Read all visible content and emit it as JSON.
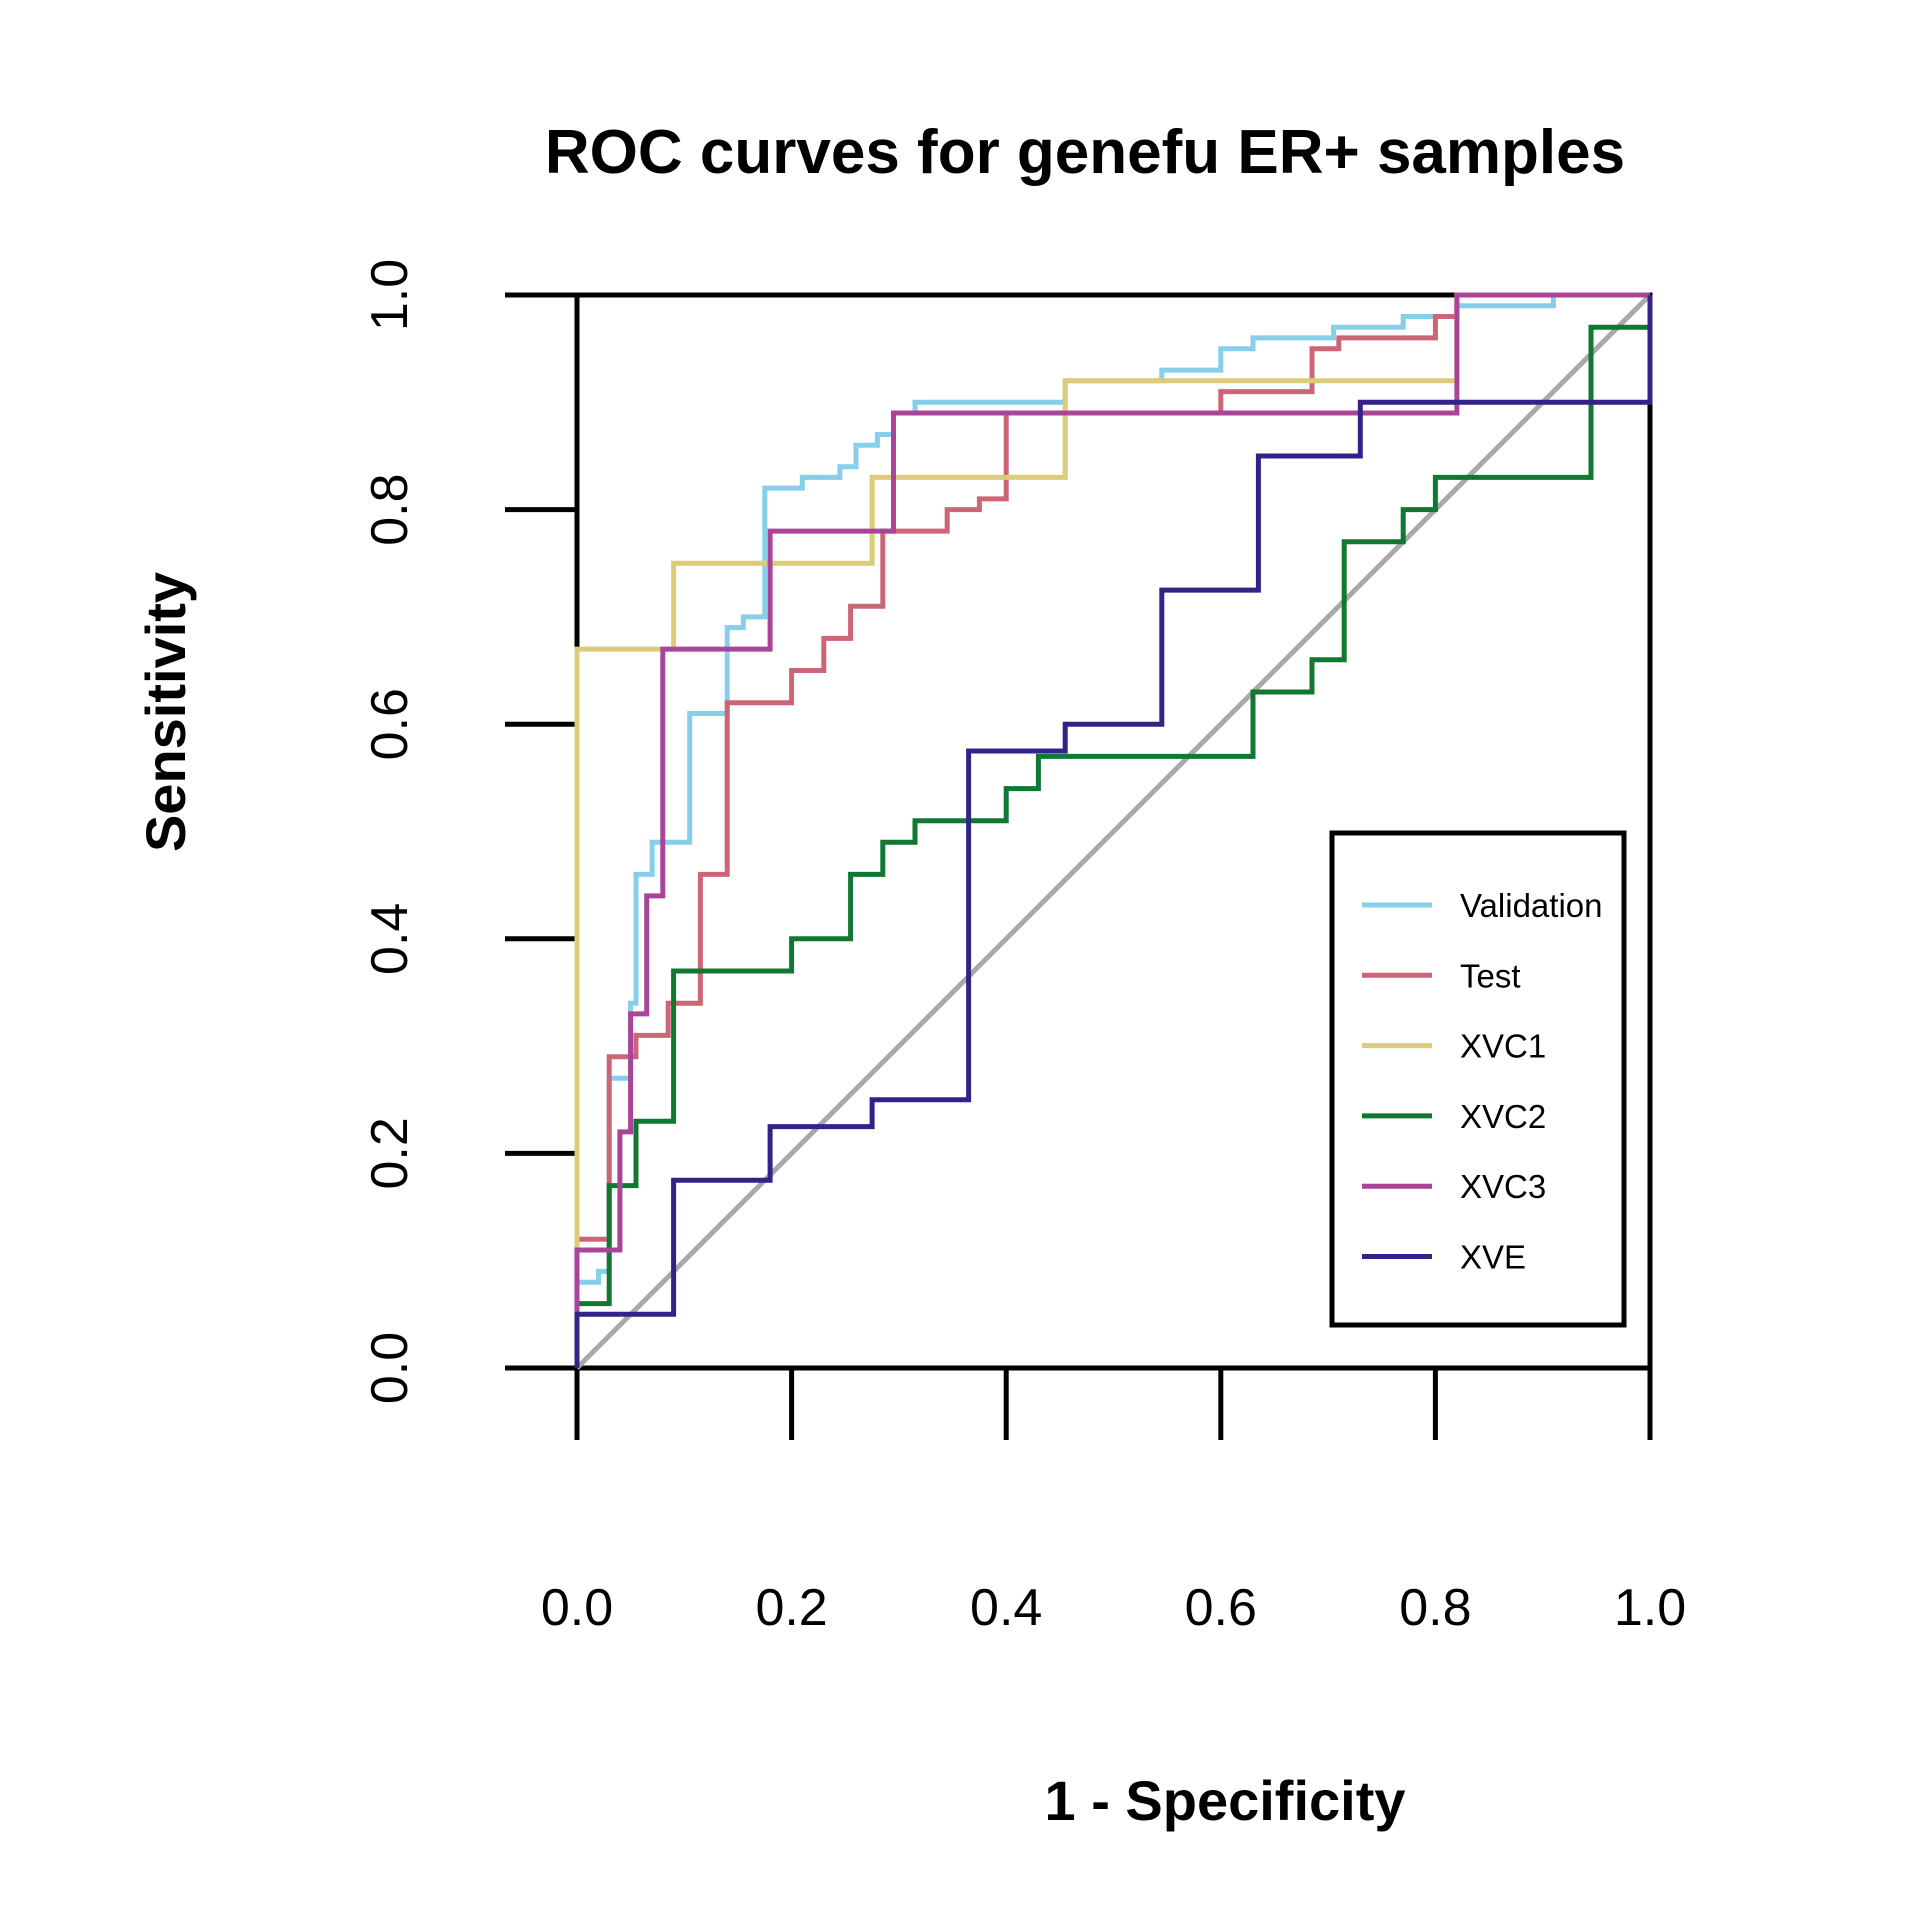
{
  "chart_data": {
    "type": "line",
    "title": "ROC curves for genefu ER+ samples",
    "xlabel": "1 - Specificity",
    "ylabel": "Sensitivity",
    "xlim": [
      0,
      1
    ],
    "ylim": [
      0,
      1
    ],
    "xticks": [
      "0.0",
      "0.2",
      "0.4",
      "0.6",
      "0.8",
      "1.0"
    ],
    "yticks": [
      "0.0",
      "0.2",
      "0.4",
      "0.6",
      "0.8",
      "1.0"
    ],
    "grid": false,
    "legend_position": "bottom-right",
    "reference_line": {
      "from": [
        0,
        0
      ],
      "to": [
        1,
        1
      ],
      "color": "#A9A9A9"
    },
    "series": [
      {
        "name": "Validation",
        "color": "#87CEEB",
        "points": [
          [
            0,
            0
          ],
          [
            0,
            0.08
          ],
          [
            0.02,
            0.08
          ],
          [
            0.02,
            0.09
          ],
          [
            0.03,
            0.09
          ],
          [
            0.03,
            0.27
          ],
          [
            0.05,
            0.27
          ],
          [
            0.05,
            0.34
          ],
          [
            0.055,
            0.34
          ],
          [
            0.055,
            0.46
          ],
          [
            0.07,
            0.46
          ],
          [
            0.07,
            0.49
          ],
          [
            0.105,
            0.49
          ],
          [
            0.105,
            0.61
          ],
          [
            0.14,
            0.61
          ],
          [
            0.14,
            0.69
          ],
          [
            0.155,
            0.69
          ],
          [
            0.155,
            0.7
          ],
          [
            0.175,
            0.7
          ],
          [
            0.175,
            0.82
          ],
          [
            0.21,
            0.82
          ],
          [
            0.21,
            0.83
          ],
          [
            0.245,
            0.83
          ],
          [
            0.245,
            0.84
          ],
          [
            0.26,
            0.84
          ],
          [
            0.26,
            0.86
          ],
          [
            0.28,
            0.86
          ],
          [
            0.28,
            0.87
          ],
          [
            0.295,
            0.87
          ],
          [
            0.295,
            0.89
          ],
          [
            0.315,
            0.89
          ],
          [
            0.315,
            0.9
          ],
          [
            0.455,
            0.9
          ],
          [
            0.455,
            0.92
          ],
          [
            0.545,
            0.92
          ],
          [
            0.545,
            0.93
          ],
          [
            0.6,
            0.93
          ],
          [
            0.6,
            0.95
          ],
          [
            0.63,
            0.95
          ],
          [
            0.63,
            0.96
          ],
          [
            0.705,
            0.96
          ],
          [
            0.705,
            0.97
          ],
          [
            0.77,
            0.97
          ],
          [
            0.77,
            0.98
          ],
          [
            0.82,
            0.98
          ],
          [
            0.82,
            0.99
          ],
          [
            0.91,
            0.99
          ],
          [
            0.91,
            1.0
          ],
          [
            1.0,
            1.0
          ]
        ]
      },
      {
        "name": "Test",
        "color": "#CC6677",
        "points": [
          [
            0,
            0
          ],
          [
            0,
            0.12
          ],
          [
            0.03,
            0.12
          ],
          [
            0.03,
            0.29
          ],
          [
            0.055,
            0.29
          ],
          [
            0.055,
            0.31
          ],
          [
            0.085,
            0.31
          ],
          [
            0.085,
            0.34
          ],
          [
            0.115,
            0.34
          ],
          [
            0.115,
            0.46
          ],
          [
            0.14,
            0.46
          ],
          [
            0.14,
            0.62
          ],
          [
            0.2,
            0.62
          ],
          [
            0.2,
            0.65
          ],
          [
            0.23,
            0.65
          ],
          [
            0.23,
            0.68
          ],
          [
            0.255,
            0.68
          ],
          [
            0.255,
            0.71
          ],
          [
            0.285,
            0.71
          ],
          [
            0.285,
            0.78
          ],
          [
            0.345,
            0.78
          ],
          [
            0.345,
            0.8
          ],
          [
            0.375,
            0.8
          ],
          [
            0.375,
            0.81
          ],
          [
            0.4,
            0.81
          ],
          [
            0.4,
            0.89
          ],
          [
            0.6,
            0.89
          ],
          [
            0.6,
            0.91
          ],
          [
            0.685,
            0.91
          ],
          [
            0.685,
            0.95
          ],
          [
            0.71,
            0.95
          ],
          [
            0.71,
            0.96
          ],
          [
            0.8,
            0.96
          ],
          [
            0.8,
            0.98
          ],
          [
            0.82,
            0.98
          ],
          [
            0.82,
            1.0
          ],
          [
            1.0,
            1.0
          ]
        ]
      },
      {
        "name": "XVC1",
        "color": "#DDCC77",
        "points": [
          [
            0,
            0
          ],
          [
            0,
            0.67
          ],
          [
            0.09,
            0.67
          ],
          [
            0.09,
            0.75
          ],
          [
            0.275,
            0.75
          ],
          [
            0.275,
            0.83
          ],
          [
            0.455,
            0.83
          ],
          [
            0.455,
            0.92
          ],
          [
            0.82,
            0.92
          ],
          [
            0.82,
            1.0
          ],
          [
            1.0,
            1.0
          ]
        ]
      },
      {
        "name": "XVC2",
        "color": "#117733",
        "points": [
          [
            0,
            0
          ],
          [
            0,
            0.06
          ],
          [
            0.03,
            0.06
          ],
          [
            0.03,
            0.17
          ],
          [
            0.055,
            0.17
          ],
          [
            0.055,
            0.23
          ],
          [
            0.09,
            0.23
          ],
          [
            0.09,
            0.37
          ],
          [
            0.2,
            0.37
          ],
          [
            0.2,
            0.4
          ],
          [
            0.255,
            0.4
          ],
          [
            0.255,
            0.46
          ],
          [
            0.285,
            0.46
          ],
          [
            0.285,
            0.49
          ],
          [
            0.315,
            0.49
          ],
          [
            0.315,
            0.51
          ],
          [
            0.4,
            0.51
          ],
          [
            0.4,
            0.54
          ],
          [
            0.43,
            0.54
          ],
          [
            0.43,
            0.57
          ],
          [
            0.63,
            0.57
          ],
          [
            0.63,
            0.63
          ],
          [
            0.685,
            0.63
          ],
          [
            0.685,
            0.66
          ],
          [
            0.715,
            0.66
          ],
          [
            0.715,
            0.77
          ],
          [
            0.77,
            0.77
          ],
          [
            0.77,
            0.8
          ],
          [
            0.8,
            0.8
          ],
          [
            0.8,
            0.83
          ],
          [
            0.945,
            0.83
          ],
          [
            0.945,
            0.97
          ],
          [
            1.0,
            0.97
          ]
        ]
      },
      {
        "name": "XVC3",
        "color": "#AA4499",
        "points": [
          [
            0,
            0
          ],
          [
            0,
            0.11
          ],
          [
            0.04,
            0.11
          ],
          [
            0.04,
            0.22
          ],
          [
            0.05,
            0.22
          ],
          [
            0.05,
            0.33
          ],
          [
            0.065,
            0.33
          ],
          [
            0.065,
            0.44
          ],
          [
            0.08,
            0.44
          ],
          [
            0.08,
            0.67
          ],
          [
            0.18,
            0.67
          ],
          [
            0.18,
            0.78
          ],
          [
            0.295,
            0.78
          ],
          [
            0.295,
            0.89
          ],
          [
            0.82,
            0.89
          ],
          [
            0.82,
            1.0
          ],
          [
            1.0,
            1.0
          ]
        ]
      },
      {
        "name": "XVE",
        "color": "#332288",
        "points": [
          [
            0,
            0
          ],
          [
            0,
            0.05
          ],
          [
            0.09,
            0.05
          ],
          [
            0.09,
            0.175
          ],
          [
            0.18,
            0.175
          ],
          [
            0.18,
            0.225
          ],
          [
            0.275,
            0.225
          ],
          [
            0.275,
            0.25
          ],
          [
            0.365,
            0.25
          ],
          [
            0.365,
            0.575
          ],
          [
            0.455,
            0.575
          ],
          [
            0.455,
            0.6
          ],
          [
            0.545,
            0.6
          ],
          [
            0.545,
            0.725
          ],
          [
            0.635,
            0.725
          ],
          [
            0.635,
            0.85
          ],
          [
            0.73,
            0.85
          ],
          [
            0.73,
            0.9
          ],
          [
            1.0,
            0.9
          ],
          [
            1.0,
            1.0
          ]
        ]
      }
    ]
  }
}
